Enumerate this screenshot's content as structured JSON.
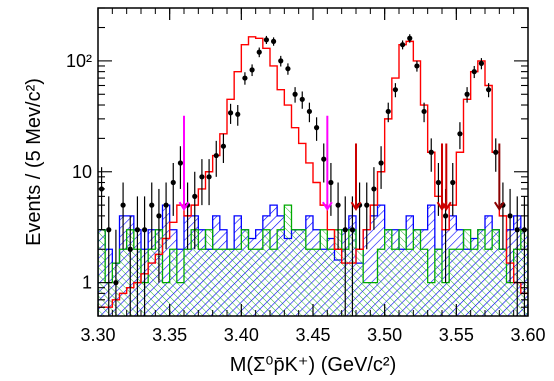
{
  "chart_data": {
    "type": "histogram",
    "xlabel": "M(Σ⁰p̄K⁺) (GeV/c²)",
    "ylabel": "Events / (5 Mev/c²)",
    "xlim": [
      3.3,
      3.6
    ],
    "ylim": [
      0.5,
      300
    ],
    "yscale": "log",
    "bin_width": 0.005,
    "x_ticks": [
      {
        "value": 3.3,
        "label": "3.30"
      },
      {
        "value": 3.35,
        "label": "3.35"
      },
      {
        "value": 3.4,
        "label": "3.40"
      },
      {
        "value": 3.45,
        "label": "3.45"
      },
      {
        "value": 3.5,
        "label": "3.50"
      },
      {
        "value": 3.55,
        "label": "3.55"
      },
      {
        "value": 3.6,
        "label": "3.60"
      }
    ],
    "y_ticks": [
      {
        "value": 1,
        "label": "1"
      },
      {
        "value": 10,
        "label": "10"
      },
      {
        "value": 100,
        "label": "10²"
      }
    ],
    "grid": false,
    "series": [
      {
        "kind": "data_points",
        "color": "#000000",
        "x": [
          3.3025,
          3.3075,
          3.3125,
          3.3175,
          3.3225,
          3.3275,
          3.3325,
          3.3375,
          3.3425,
          3.3475,
          3.3525,
          3.3575,
          3.3625,
          3.3675,
          3.3725,
          3.3775,
          3.3825,
          3.3875,
          3.3925,
          3.3975,
          3.4025,
          3.4075,
          3.4125,
          3.4175,
          3.4225,
          3.4275,
          3.4325,
          3.4375,
          3.4425,
          3.4475,
          3.4525,
          3.4575,
          3.4625,
          3.4675,
          3.4725,
          3.4775,
          3.4825,
          3.4875,
          3.4925,
          3.4975,
          3.5025,
          3.5075,
          3.5125,
          3.5175,
          3.5225,
          3.5275,
          3.5325,
          3.5375,
          3.5425,
          3.5475,
          3.5525,
          3.5575,
          3.5625,
          3.5675,
          3.5725,
          3.5775,
          3.5825,
          3.5875,
          3.5925,
          3.5975
        ],
        "y": [
          7,
          3,
          1,
          5,
          2,
          3,
          3,
          5,
          4,
          5,
          8,
          12,
          5,
          6,
          9,
          9,
          14,
          17,
          34,
          33,
          70,
          83,
          120,
          155,
          150,
          100,
          85,
          50,
          45,
          35,
          25,
          13,
          8,
          5,
          3,
          3,
          5,
          5,
          7,
          12,
          35,
          55,
          140,
          160,
          90,
          35,
          15,
          8,
          4,
          8,
          22,
          50,
          80,
          95,
          55,
          15,
          5,
          4,
          3,
          3
        ],
        "yerr_up": [
          4,
          3,
          2,
          3,
          2,
          3,
          3,
          3,
          3,
          3,
          4,
          5,
          3,
          4,
          4,
          4,
          5,
          5,
          7,
          7,
          9,
          10,
          12,
          13,
          13,
          11,
          10,
          8,
          8,
          7,
          6,
          5,
          4,
          3,
          3,
          3,
          3,
          3,
          4,
          5,
          7,
          8,
          13,
          14,
          10,
          7,
          5,
          4,
          3,
          4,
          6,
          8,
          10,
          11,
          8,
          5,
          3,
          3,
          3,
          3
        ]
      },
      {
        "kind": "histogram_step",
        "name": "",
        "color": "#ff0000",
        "values": [
          0.6,
          0.6,
          0.7,
          0.8,
          0.9,
          1.0,
          1.2,
          1.5,
          1.8,
          2.5,
          3.5,
          5,
          4,
          5,
          7,
          10,
          14,
          22,
          45,
          80,
          140,
          165,
          160,
          130,
          90,
          55,
          40,
          25,
          18,
          12,
          8,
          5,
          3,
          2,
          1.5,
          1.5,
          2,
          3,
          5,
          10,
          30,
          70,
          140,
          150,
          100,
          40,
          15,
          6,
          3,
          5,
          15,
          45,
          80,
          100,
          60,
          15,
          4,
          1.5,
          1.0,
          0.8
        ]
      },
      {
        "kind": "histogram_filled_hatched",
        "name": "",
        "color": "#0000ff",
        "values": [
          3,
          2,
          1.5,
          4,
          4,
          3,
          2,
          3,
          3,
          5,
          3,
          2,
          4,
          4,
          3,
          2,
          4,
          3,
          2,
          4,
          3,
          2.5,
          3,
          4,
          5,
          4,
          2.5,
          3,
          3,
          4,
          3,
          2,
          2.5,
          1.6,
          3,
          4,
          1.5,
          3,
          4,
          5,
          3,
          3,
          2,
          4,
          3,
          3,
          5,
          2,
          3,
          4,
          3,
          2,
          2.5,
          3,
          4,
          3,
          2,
          3,
          4,
          3
        ]
      },
      {
        "kind": "histogram_filled_hatched",
        "name": "",
        "color": "#00aa00",
        "values": [
          3,
          1,
          1.5,
          2,
          3,
          2,
          1,
          2,
          3,
          1,
          2,
          1,
          2,
          3,
          2,
          3,
          2,
          2,
          2,
          2,
          3,
          2,
          2,
          3,
          2,
          3,
          5,
          3,
          3,
          2,
          2,
          3,
          2,
          3,
          2,
          3,
          2,
          1,
          1,
          2,
          3,
          2,
          3,
          2,
          3,
          2,
          1,
          2,
          1,
          2,
          2,
          3,
          2,
          3,
          2,
          3,
          2,
          1,
          2,
          3
        ]
      }
    ],
    "markers": [
      {
        "x": 3.36,
        "color": "#ff00ff"
      },
      {
        "x": 3.46,
        "color": "#ff00ff"
      },
      {
        "x": 3.48,
        "color": "#cc0000"
      },
      {
        "x": 3.54,
        "color": "#cc0000"
      },
      {
        "x": 3.543,
        "color": "#cc0000"
      },
      {
        "x": 3.58,
        "color": "#8b0000"
      }
    ]
  }
}
